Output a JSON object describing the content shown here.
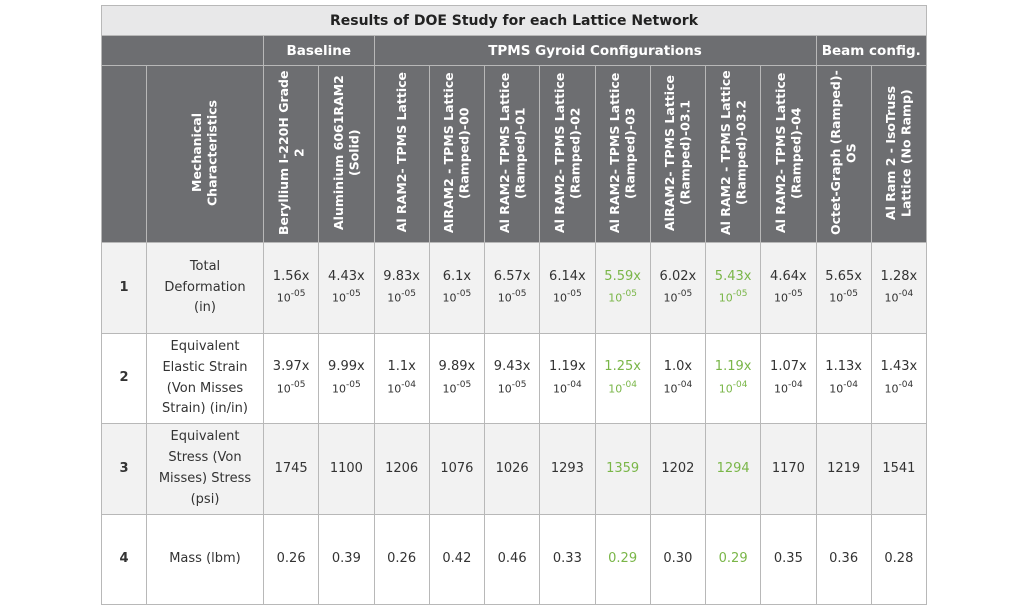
{
  "table": {
    "title": "Results of DOE Study for each Lattice Network",
    "highlight_color": "#7ab648",
    "groups": [
      {
        "label": "Baseline",
        "span": 2
      },
      {
        "label": "TPMS Gyroid Configurations",
        "span": 8
      },
      {
        "label": "Beam config.",
        "span": 2
      }
    ],
    "row_header": "Mechanical Characteristics",
    "columns": [
      {
        "label": "Beryllium I-220H Grade 2",
        "highlight": false
      },
      {
        "label": "Aluminium 6061RAM2 (Solid)",
        "highlight": false
      },
      {
        "label": "Al RAM2- TPMS Lattice",
        "highlight": false
      },
      {
        "label": "AIRAM2 - TPMS Lattice (Ramped)-00",
        "highlight": false
      },
      {
        "label": "Al RAM2- TPMS Lattice (Ramped)-01",
        "highlight": false
      },
      {
        "label": "Al RAM2- TPMS Lattice (Ramped)-02",
        "highlight": false
      },
      {
        "label": "Al RAM2- TPMS Lattice (Ramped)-03",
        "highlight": true
      },
      {
        "label": "AlRAM2- TPMS Lattice (Ramped)-03.1",
        "highlight": false
      },
      {
        "label": "Al RAM2 - TPMS Lattice (Ramped)-03.2",
        "highlight": true
      },
      {
        "label": "Al RAM2- TPMS Lattice (Ramped)-04",
        "highlight": false
      },
      {
        "label": "Octet-Graph (Ramped)-OS",
        "highlight": false
      },
      {
        "label": "Al Ram 2 - IsoTruss Lattice (No Ramp)",
        "highlight": false
      }
    ],
    "rows": [
      {
        "number": "1",
        "label": "Total Deformation (in)",
        "cells": [
          {
            "coef": "1.56x",
            "base": "10",
            "exp": "-05"
          },
          {
            "coef": "4.43x",
            "base": "10",
            "exp": "-05"
          },
          {
            "coef": "9.83x",
            "base": "10",
            "exp": "-05"
          },
          {
            "coef": "6.1x",
            "base": "10",
            "exp": "-05"
          },
          {
            "coef": "6.57x",
            "base": "10",
            "exp": "-05"
          },
          {
            "coef": "6.14x",
            "base": "10",
            "exp": "-05"
          },
          {
            "coef": "5.59x",
            "base": "10",
            "exp": "-05"
          },
          {
            "coef": "6.02x",
            "base": "10",
            "exp": "-05"
          },
          {
            "coef": "5.43x",
            "base": "10",
            "exp": "-05"
          },
          {
            "coef": "4.64x",
            "base": "10",
            "exp": "-05"
          },
          {
            "coef": "5.65x",
            "base": "10",
            "exp": "-05"
          },
          {
            "coef": "1.28x",
            "base": "10",
            "exp": "-04"
          }
        ]
      },
      {
        "number": "2",
        "label": "Equivalent Elastic Strain (Von Misses Strain) (in/in)",
        "cells": [
          {
            "coef": "3.97x",
            "base": "10",
            "exp": "-05"
          },
          {
            "coef": "9.99x",
            "base": "10",
            "exp": "-05"
          },
          {
            "coef": "1.1x",
            "base": "10",
            "exp": "-04"
          },
          {
            "coef": "9.89x",
            "base": "10",
            "exp": "-05"
          },
          {
            "coef": "9.43x",
            "base": "10",
            "exp": "-05"
          },
          {
            "coef": "1.19x",
            "base": "10",
            "exp": "-04"
          },
          {
            "coef": "1.25x",
            "base": "10",
            "exp": "-04"
          },
          {
            "coef": "1.0x",
            "base": "10",
            "exp": "-04"
          },
          {
            "coef": "1.19x",
            "base": "10",
            "exp": "-04"
          },
          {
            "coef": "1.07x",
            "base": "10",
            "exp": "-04"
          },
          {
            "coef": "1.13x",
            "base": "10",
            "exp": "-04"
          },
          {
            "coef": "1.43x",
            "base": "10",
            "exp": "-04"
          }
        ]
      },
      {
        "number": "3",
        "label": "Equivalent Stress (Von Misses) Stress (psi)",
        "cells": [
          "1745",
          "1100",
          "1206",
          "1076",
          "1026",
          "1293",
          "1359",
          "1202",
          "1294",
          "1170",
          "1219",
          "1541"
        ]
      },
      {
        "number": "4",
        "label": "Mass (lbm)",
        "cells": [
          "0.26",
          "0.39",
          "0.26",
          "0.42",
          "0.46",
          "0.33",
          "0.29",
          "0.30",
          "0.29",
          "0.35",
          "0.36",
          "0.28"
        ]
      }
    ]
  }
}
